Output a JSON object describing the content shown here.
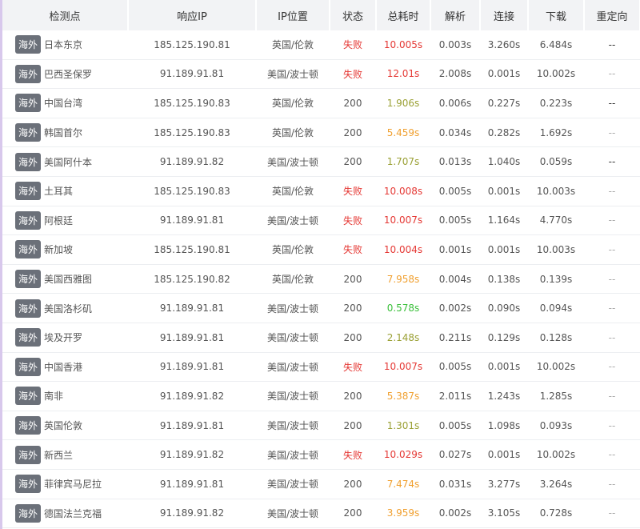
{
  "header": [
    "检测点",
    "响应IP",
    "IP位置",
    "状态",
    "总耗时",
    "解析",
    "连接",
    "下载",
    "重定向"
  ],
  "rows": [
    {
      "tag": "海外",
      "node": "日本东京",
      "ip": "185.125.190.81",
      "location": "英国/伦敦",
      "status": "失败",
      "status_color": "#e53935",
      "total": "10.005s",
      "total_color": "#e53935",
      "dns": "0.003s",
      "connect": "3.260s",
      "download": "6.484s",
      "redirect": "--"
    },
    {
      "tag": "海外",
      "node": "巴西圣保罗",
      "ip": "91.189.91.81",
      "location": "美国/波士顿",
      "status": "失败",
      "status_color": "#e53935",
      "total": "12.01s",
      "total_color": "#e53935",
      "dns": "2.008s",
      "connect": "0.001s",
      "download": "10.002s",
      "redirect": "--"
    },
    {
      "tag": "海外",
      "node": "中国台湾",
      "ip": "185.125.190.83",
      "location": "英国/伦敦",
      "status": "200",
      "status_color": "#555555",
      "total": "1.906s",
      "total_color": "#9aa034",
      "dns": "0.006s",
      "connect": "0.227s",
      "download": "0.223s",
      "redirect": "--"
    },
    {
      "tag": "海外",
      "node": "韩国首尔",
      "ip": "185.125.190.83",
      "location": "英国/伦敦",
      "status": "200",
      "status_color": "#555555",
      "total": "5.459s",
      "total_color": "#f0a030",
      "dns": "0.034s",
      "connect": "0.282s",
      "download": "1.692s",
      "redirect": "--"
    },
    {
      "tag": "海外",
      "node": "美国阿什本",
      "ip": "91.189.91.82",
      "location": "美国/波士顿",
      "status": "200",
      "status_color": "#555555",
      "total": "1.707s",
      "total_color": "#9aa034",
      "dns": "0.013s",
      "connect": "1.040s",
      "download": "0.059s",
      "redirect": "--"
    },
    {
      "tag": "海外",
      "node": "土耳其",
      "ip": "185.125.190.83",
      "location": "英国/伦敦",
      "status": "失败",
      "status_color": "#e53935",
      "total": "10.008s",
      "total_color": "#e53935",
      "dns": "0.005s",
      "connect": "0.001s",
      "download": "10.003s",
      "redirect": "--"
    },
    {
      "tag": "海外",
      "node": "阿根廷",
      "ip": "91.189.91.81",
      "location": "美国/波士顿",
      "status": "失败",
      "status_color": "#e53935",
      "total": "10.007s",
      "total_color": "#e53935",
      "dns": "0.005s",
      "connect": "1.164s",
      "download": "4.770s",
      "redirect": "--"
    },
    {
      "tag": "海外",
      "node": "新加坡",
      "ip": "185.125.190.81",
      "location": "英国/伦敦",
      "status": "失败",
      "status_color": "#e53935",
      "total": "10.004s",
      "total_color": "#e53935",
      "dns": "0.001s",
      "connect": "0.001s",
      "download": "10.003s",
      "redirect": "--"
    },
    {
      "tag": "海外",
      "node": "美国西雅图",
      "ip": "185.125.190.82",
      "location": "英国/伦敦",
      "status": "200",
      "status_color": "#555555",
      "total": "7.958s",
      "total_color": "#f0a030",
      "dns": "0.004s",
      "connect": "0.138s",
      "download": "0.139s",
      "redirect": "--"
    },
    {
      "tag": "海外",
      "node": "美国洛杉矶",
      "ip": "91.189.91.81",
      "location": "美国/波士顿",
      "status": "200",
      "status_color": "#555555",
      "total": "0.578s",
      "total_color": "#3cc03c",
      "dns": "0.002s",
      "connect": "0.090s",
      "download": "0.094s",
      "redirect": "--"
    },
    {
      "tag": "海外",
      "node": "埃及开罗",
      "ip": "91.189.91.81",
      "location": "美国/波士顿",
      "status": "200",
      "status_color": "#555555",
      "total": "2.148s",
      "total_color": "#9aa034",
      "dns": "0.211s",
      "connect": "0.129s",
      "download": "0.128s",
      "redirect": "--"
    },
    {
      "tag": "海外",
      "node": "中国香港",
      "ip": "91.189.91.81",
      "location": "美国/波士顿",
      "status": "失败",
      "status_color": "#e53935",
      "total": "10.007s",
      "total_color": "#e53935",
      "dns": "0.005s",
      "connect": "0.001s",
      "download": "10.002s",
      "redirect": "--"
    },
    {
      "tag": "海外",
      "node": "南非",
      "ip": "91.189.91.82",
      "location": "美国/波士顿",
      "status": "200",
      "status_color": "#555555",
      "total": "5.387s",
      "total_color": "#f0a030",
      "dns": "2.011s",
      "connect": "1.243s",
      "download": "1.285s",
      "redirect": "--"
    },
    {
      "tag": "海外",
      "node": "英国伦敦",
      "ip": "91.189.91.81",
      "location": "美国/波士顿",
      "status": "200",
      "status_color": "#555555",
      "total": "1.301s",
      "total_color": "#9aa034",
      "dns": "0.005s",
      "connect": "1.098s",
      "download": "0.093s",
      "redirect": "--"
    },
    {
      "tag": "海外",
      "node": "新西兰",
      "ip": "91.189.91.82",
      "location": "美国/波士顿",
      "status": "失败",
      "status_color": "#e53935",
      "total": "10.029s",
      "total_color": "#e53935",
      "dns": "0.027s",
      "connect": "0.001s",
      "download": "10.002s",
      "redirect": "--"
    },
    {
      "tag": "海外",
      "node": "菲律宾马尼拉",
      "ip": "91.189.91.81",
      "location": "美国/波士顿",
      "status": "200",
      "status_color": "#555555",
      "total": "7.474s",
      "total_color": "#f0a030",
      "dns": "0.031s",
      "connect": "3.277s",
      "download": "3.264s",
      "redirect": "--"
    },
    {
      "tag": "海外",
      "node": "德国法兰克福",
      "ip": "91.189.91.82",
      "location": "美国/波士顿",
      "status": "200",
      "status_color": "#555555",
      "total": "3.959s",
      "total_color": "#f0a030",
      "dns": "0.002s",
      "connect": "3.105s",
      "download": "0.728s",
      "redirect": "--"
    }
  ]
}
